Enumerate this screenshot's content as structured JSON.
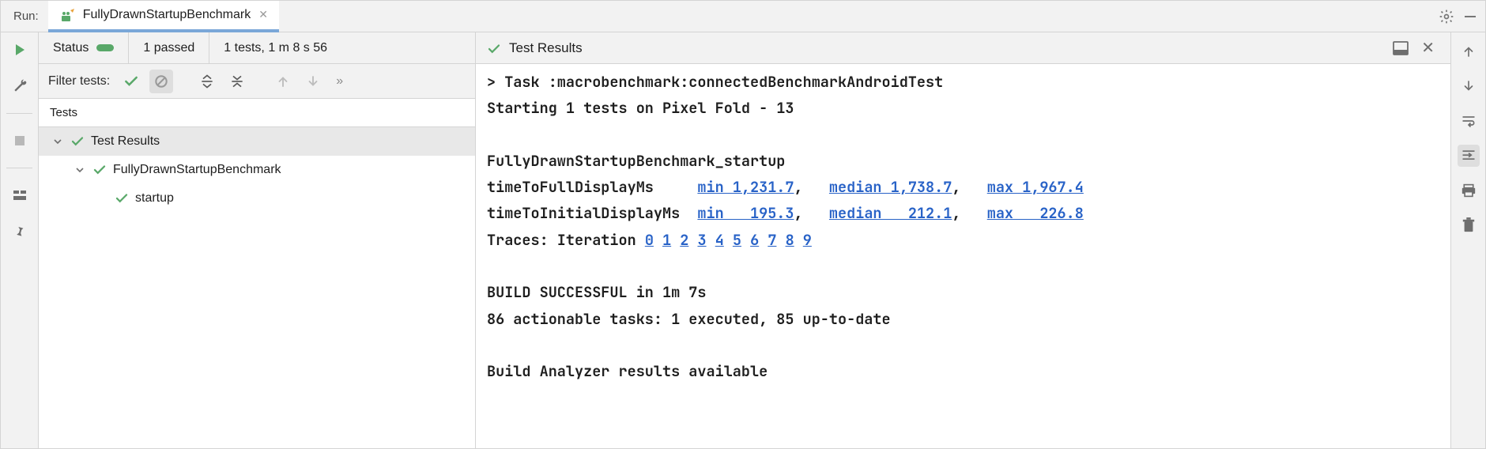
{
  "colors": {
    "green": "#59a869",
    "link": "#2862c7",
    "grey": "#767676",
    "bg_panel": "#f2f2f2",
    "border": "#d4d4d4"
  },
  "topbar": {
    "run_label": "Run:",
    "config_name": "FullyDrawnStartupBenchmark"
  },
  "status": {
    "label": "Status",
    "passed": "1 passed",
    "summary": "1 tests, 1 m 8 s 56"
  },
  "filter": {
    "label": "Filter tests:"
  },
  "tests_header": "Tests",
  "tree": {
    "root": "Test Results",
    "suite": "FullyDrawnStartupBenchmark",
    "case": "startup"
  },
  "right_header": "Test Results",
  "console": {
    "line_task": "> Task :macrobenchmark:connectedBenchmarkAndroidTest",
    "line_start": "Starting 1 tests on Pixel Fold - 13",
    "blank": "",
    "bench_name": "FullyDrawnStartupBenchmark_startup",
    "row1_label": "timeToFullDisplayMs",
    "row1_min": "min 1,231.7",
    "row1_med": "median 1,738.7",
    "row1_max": "max 1,967.4",
    "row2_label": "timeToInitialDisplayMs",
    "row2_min": "min   195.3",
    "row2_med": "median   212.1",
    "row2_max": "max   226.8",
    "traces_label": "Traces: Iteration",
    "traces": [
      "0",
      "1",
      "2",
      "3",
      "4",
      "5",
      "6",
      "7",
      "8",
      "9"
    ],
    "build_ok": "BUILD SUCCESSFUL in 1m 7s",
    "tasks": "86 actionable tasks: 1 executed, 85 up-to-date",
    "analyzer": "Build Analyzer results available",
    "sep_comma": ",",
    "pad_metric": "     ",
    "pad_metric2": "  ",
    "pad_gap": "   ",
    "pad_gap2": "   "
  }
}
